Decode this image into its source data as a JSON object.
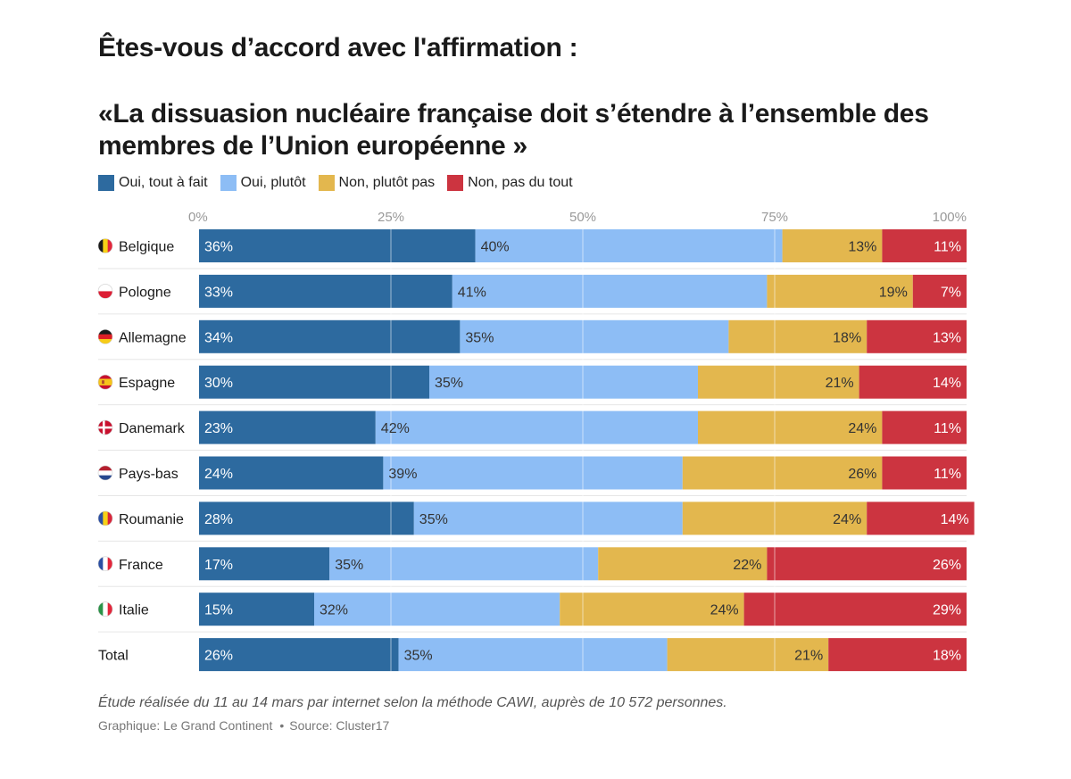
{
  "title": "Êtes-vous d’accord avec l'affirmation :",
  "subtitle": "«La dissuasion nucléaire française doit s’étendre à l’ensemble des membres de l’Union européenne »",
  "footnote": "Étude réalisée du 11 au 14 mars par internet selon la méthode CAWI, auprès de 10 572 personnes.",
  "credit": {
    "graphic": "Graphique: Le Grand Continent",
    "source": "Source: Cluster17"
  },
  "chart_data": {
    "type": "bar",
    "orientation": "horizontal",
    "stacked": true,
    "legend_position": "top-left",
    "grid": true,
    "xlim": [
      0,
      100
    ],
    "ticks": [
      "0%",
      "25%",
      "50%",
      "75%",
      "100%"
    ],
    "categories": [
      "Belgique",
      "Pologne",
      "Allemagne",
      "Espagne",
      "Danemark",
      "Pays-bas",
      "Roumanie",
      "France",
      "Italie",
      "Total"
    ],
    "flags": [
      "be",
      "pl",
      "de",
      "es",
      "dk",
      "nl",
      "ro",
      "fr",
      "it",
      ""
    ],
    "series": [
      {
        "name": "Oui, tout à fait",
        "color": "#2d6a9f",
        "text_color": "#ffffff",
        "values": [
          36,
          33,
          34,
          30,
          23,
          24,
          28,
          17,
          15,
          26
        ]
      },
      {
        "name": "Oui, plutôt",
        "color": "#8dbdf5",
        "text_color": "#333333",
        "values": [
          40,
          41,
          35,
          35,
          42,
          39,
          35,
          35,
          32,
          35
        ]
      },
      {
        "name": "Non, plutôt pas",
        "color": "#e3b74e",
        "text_color": "#333333",
        "values": [
          13,
          19,
          18,
          21,
          24,
          26,
          24,
          22,
          24,
          21
        ]
      },
      {
        "name": "Non, pas du tout",
        "color": "#cc3440",
        "text_color": "#ffffff",
        "values": [
          11,
          7,
          13,
          14,
          11,
          11,
          14,
          26,
          29,
          18
        ]
      }
    ]
  }
}
